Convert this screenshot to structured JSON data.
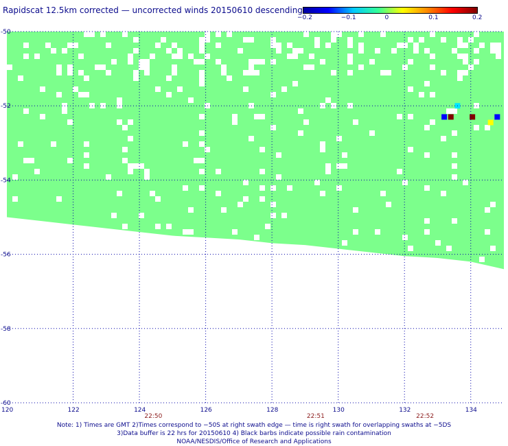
{
  "title": "Rapidscat 12.5km corrected — uncorrected winds 20150610 descending",
  "colorbar": {
    "ticks": [
      {
        "label": "−0.2",
        "value": -0.2
      },
      {
        "label": "−0.1",
        "value": -0.1
      },
      {
        "label": "0",
        "value": 0
      },
      {
        "label": "0.1",
        "value": 0.1
      },
      {
        "label": "0.2",
        "value": 0.2
      }
    ],
    "stops": [
      "#0000a0",
      "#0000ff",
      "#00c8ff",
      "#33ff99",
      "#ffff00",
      "#ff8800",
      "#ff0000",
      "#800000"
    ]
  },
  "map": {
    "lat_range": [
      -60,
      -50
    ],
    "lon_range": [
      120,
      135
    ],
    "lat_ticks": [
      {
        "label": "-50",
        "value": -50
      },
      {
        "label": "-52",
        "value": -52
      },
      {
        "label": "-54",
        "value": -54
      },
      {
        "label": "-56",
        "value": -56
      },
      {
        "label": "-58",
        "value": -58
      },
      {
        "label": "-60",
        "value": -60
      }
    ],
    "lon_ticks": [
      {
        "label": "120",
        "value": 120
      },
      {
        "label": "122",
        "value": 122
      },
      {
        "label": "124",
        "value": 124
      },
      {
        "label": "126",
        "value": 126
      },
      {
        "label": "128",
        "value": 128
      },
      {
        "label": "130",
        "value": 130
      },
      {
        "label": "132",
        "value": 132
      },
      {
        "label": "134",
        "value": 134
      }
    ],
    "time_labels": [
      {
        "label": "22:50",
        "lon": 124.4
      },
      {
        "label": "22:51",
        "lon": 129.3
      },
      {
        "label": "22:52",
        "lon": 132.6
      }
    ],
    "swath_color": "#7cff8c",
    "swath_bottom_lat": [
      {
        "lon": 120.0,
        "lat": -55.0
      },
      {
        "lon": 121.0,
        "lat": -55.1
      },
      {
        "lon": 122.0,
        "lat": -55.2
      },
      {
        "lon": 123.0,
        "lat": -55.3
      },
      {
        "lon": 124.0,
        "lat": -55.4
      },
      {
        "lon": 125.0,
        "lat": -55.5
      },
      {
        "lon": 126.0,
        "lat": -55.55
      },
      {
        "lon": 127.0,
        "lat": -55.6
      },
      {
        "lon": 128.0,
        "lat": -55.7
      },
      {
        "lon": 129.0,
        "lat": -55.75
      },
      {
        "lon": 130.0,
        "lat": -55.85
      },
      {
        "lon": 131.0,
        "lat": -55.95
      },
      {
        "lon": 132.0,
        "lat": -56.05
      },
      {
        "lon": 133.0,
        "lat": -56.1
      },
      {
        "lon": 134.0,
        "lat": -56.2
      },
      {
        "lon": 135.0,
        "lat": -56.4
      }
    ],
    "highlight_cells": [
      {
        "lon": 133.6,
        "lat": -52.0,
        "color": "#00e8ff"
      },
      {
        "lon": 133.2,
        "lat": -52.3,
        "color": "#0000ff"
      },
      {
        "lon": 133.4,
        "lat": -52.3,
        "color": "#800000"
      },
      {
        "lon": 134.05,
        "lat": -52.3,
        "color": "#800000"
      },
      {
        "lon": 134.6,
        "lat": -52.45,
        "color": "#ffff00"
      },
      {
        "lon": 134.8,
        "lat": -52.3,
        "color": "#0000ff"
      }
    ]
  },
  "notes": [
    "Note: 1) Times are GMT 2)Times correspond to −50S at right swath edge — time is right swath for overlapping swaths at −5DS",
    "3)Data buffer is 22 hrs for 20150610 4) Black barbs indicate possible rain contamination",
    "NOAA/NESDIS/Office of Research and Applications"
  ]
}
